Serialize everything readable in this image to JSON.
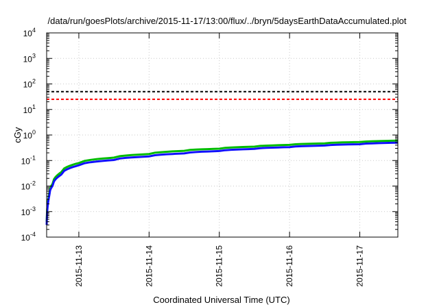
{
  "chart_data": {
    "type": "line",
    "title": "/data/run/goesPlots/archive/2015-11-17/13:00/flux/../bryn/5daysEarthDataAccumulated.plot",
    "xlabel": "Coordinated Universal Time (UTC)",
    "ylabel": "cGy",
    "yscale": "log",
    "ylim": [
      0.0001,
      10000
    ],
    "xlim": [
      "2015-11-12T13:00",
      "2015-11-17T13:00"
    ],
    "grid": true,
    "x_tick_labels": [
      "2015-11-13",
      "2015-11-14",
      "2015-11-15",
      "2015-11-16",
      "2015-11-17"
    ],
    "y_tick_labels": [
      {
        "base": "10",
        "exp": "-4"
      },
      {
        "base": "10",
        "exp": "-3"
      },
      {
        "base": "10",
        "exp": "-2"
      },
      {
        "base": "10",
        "exp": "-1"
      },
      {
        "base": "10",
        "exp": "0"
      },
      {
        "base": "10",
        "exp": "1"
      },
      {
        "base": "10",
        "exp": "2"
      },
      {
        "base": "10",
        "exp": "3"
      },
      {
        "base": "10",
        "exp": "4"
      }
    ],
    "thresholds": [
      {
        "value": 50,
        "color": "#000000",
        "style": "dashed"
      },
      {
        "value": 25,
        "color": "#ff0000",
        "style": "dashed"
      }
    ],
    "series": [
      {
        "color": "#00bb00",
        "x": [
          "2015-11-12T13:00",
          "2015-11-12T14:00",
          "2015-11-12T15:00",
          "2015-11-12T18:00",
          "2015-11-13T00:00",
          "2015-11-13T12:00",
          "2015-11-14T00:00",
          "2015-11-14T12:00",
          "2015-11-15T00:00",
          "2015-11-15T12:00",
          "2015-11-16T00:00",
          "2015-11-16T12:00",
          "2015-11-17T00:00",
          "2015-11-17T13:00"
        ],
        "y": [
          0.0004,
          0.006,
          0.012,
          0.035,
          0.08,
          0.13,
          0.18,
          0.24,
          0.29,
          0.35,
          0.41,
          0.47,
          0.53,
          0.6
        ]
      },
      {
        "color": "#1010ff",
        "x": [
          "2015-11-12T13:00",
          "2015-11-12T14:00",
          "2015-11-12T15:00",
          "2015-11-12T18:00",
          "2015-11-13T00:00",
          "2015-11-13T12:00",
          "2015-11-14T00:00",
          "2015-11-14T12:00",
          "2015-11-15T00:00",
          "2015-11-15T12:00",
          "2015-11-16T00:00",
          "2015-11-16T12:00",
          "2015-11-17T00:00",
          "2015-11-17T13:00"
        ],
        "y": [
          0.0003,
          0.005,
          0.01,
          0.028,
          0.065,
          0.105,
          0.145,
          0.19,
          0.235,
          0.285,
          0.335,
          0.385,
          0.435,
          0.5
        ]
      }
    ]
  }
}
